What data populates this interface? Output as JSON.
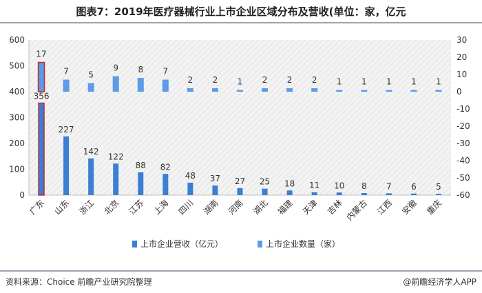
{
  "title": "图表7：2019年医疗器械行业上市企业区域分布及营收(单位：家，亿元",
  "source": "资料来源：Choice 前瞻产业研究院整理",
  "brand": "@前瞻经济学人APP",
  "chart_data": {
    "type": "bar",
    "categories": [
      "广东",
      "山东",
      "浙江",
      "北京",
      "江苏",
      "上海",
      "四川",
      "湖南",
      "河南",
      "湖北",
      "福建",
      "天津",
      "吉林",
      "内蒙古",
      "江西",
      "安徽",
      "重庆"
    ],
    "series": [
      {
        "name": "上市企业营收（亿元）",
        "axis": "left",
        "color": "#3a7fd5",
        "values": [
          356,
          227,
          142,
          122,
          88,
          82,
          48,
          37,
          27,
          25,
          18,
          11,
          10,
          8,
          7,
          6,
          5
        ]
      },
      {
        "name": "上市企业数量（家）",
        "axis": "right",
        "color": "#5b9be8",
        "values": [
          17,
          7,
          5,
          9,
          8,
          7,
          2,
          2,
          1,
          2,
          2,
          2,
          1,
          1,
          1,
          1,
          1
        ]
      }
    ],
    "left_axis": {
      "min": 0,
      "max": 600,
      "ticks": [
        "0",
        "100",
        "200",
        "300",
        "400",
        "500",
        "600"
      ]
    },
    "right_axis": {
      "min": -60,
      "max": 30,
      "ticks": [
        "-60",
        "-50",
        "-40",
        "-30",
        "-20",
        "-10",
        "0",
        "10",
        "20",
        "30"
      ]
    },
    "highlight_category": "广东",
    "highlight_color": "#c62828",
    "legend_position": "bottom",
    "grid": false
  }
}
